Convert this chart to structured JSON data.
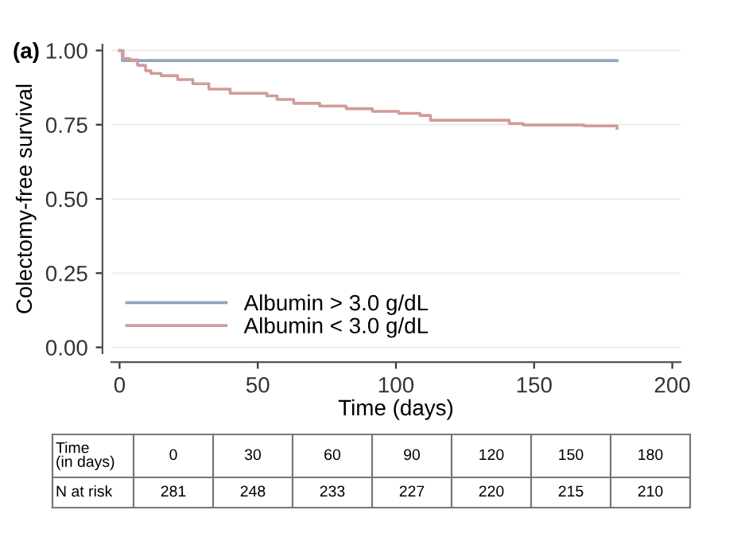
{
  "chart_data": {
    "type": "step",
    "title": "(a)",
    "xlabel": "Time (days)",
    "ylabel": "Colectomy-free survival",
    "xlim": [
      -3,
      203
    ],
    "xticks": [
      0,
      50,
      100,
      150,
      200
    ],
    "ylim": [
      -0.02,
      1.02
    ],
    "yticks": [
      {
        "value": 0,
        "label": "0.00"
      },
      {
        "value": 0.25,
        "label": "0.25"
      },
      {
        "value": 0.5,
        "label": "0.50"
      },
      {
        "value": 0.75,
        "label": "0.75"
      },
      {
        "value": 1,
        "label": "1.00"
      }
    ],
    "grid": "y",
    "legend": "bottom left",
    "series": [
      {
        "name": "Albumin > 3.0 g/dL",
        "color": "#8ea6c4",
        "x": [
          0,
          1,
          180
        ],
        "values": [
          1.0,
          0.966,
          0.966
        ]
      },
      {
        "name": "Albumin < 3.0 g/dL",
        "color": "#d49a9a",
        "x": [
          0,
          1.3,
          3.6,
          6.5,
          9.4,
          11.3,
          15,
          21,
          26.5,
          32.3,
          40,
          47.6,
          53.3,
          57,
          63,
          72.4,
          82,
          91.5,
          101,
          108.7,
          112.5,
          137,
          141,
          146,
          168,
          180
        ],
        "values": [
          1.0,
          0.973,
          0.968,
          0.95,
          0.932,
          0.923,
          0.915,
          0.902,
          0.888,
          0.87,
          0.856,
          0.856,
          0.847,
          0.835,
          0.822,
          0.813,
          0.804,
          0.795,
          0.788,
          0.781,
          0.765,
          0.765,
          0.754,
          0.749,
          0.746,
          0.738
        ]
      }
    ],
    "annotations": [
      "Time\n(in days)",
      "0",
      "30",
      "60",
      "90",
      "120",
      "150",
      "180",
      "N at risk",
      "281",
      "248",
      "233",
      "227",
      "220",
      "215",
      "210"
    ]
  }
}
